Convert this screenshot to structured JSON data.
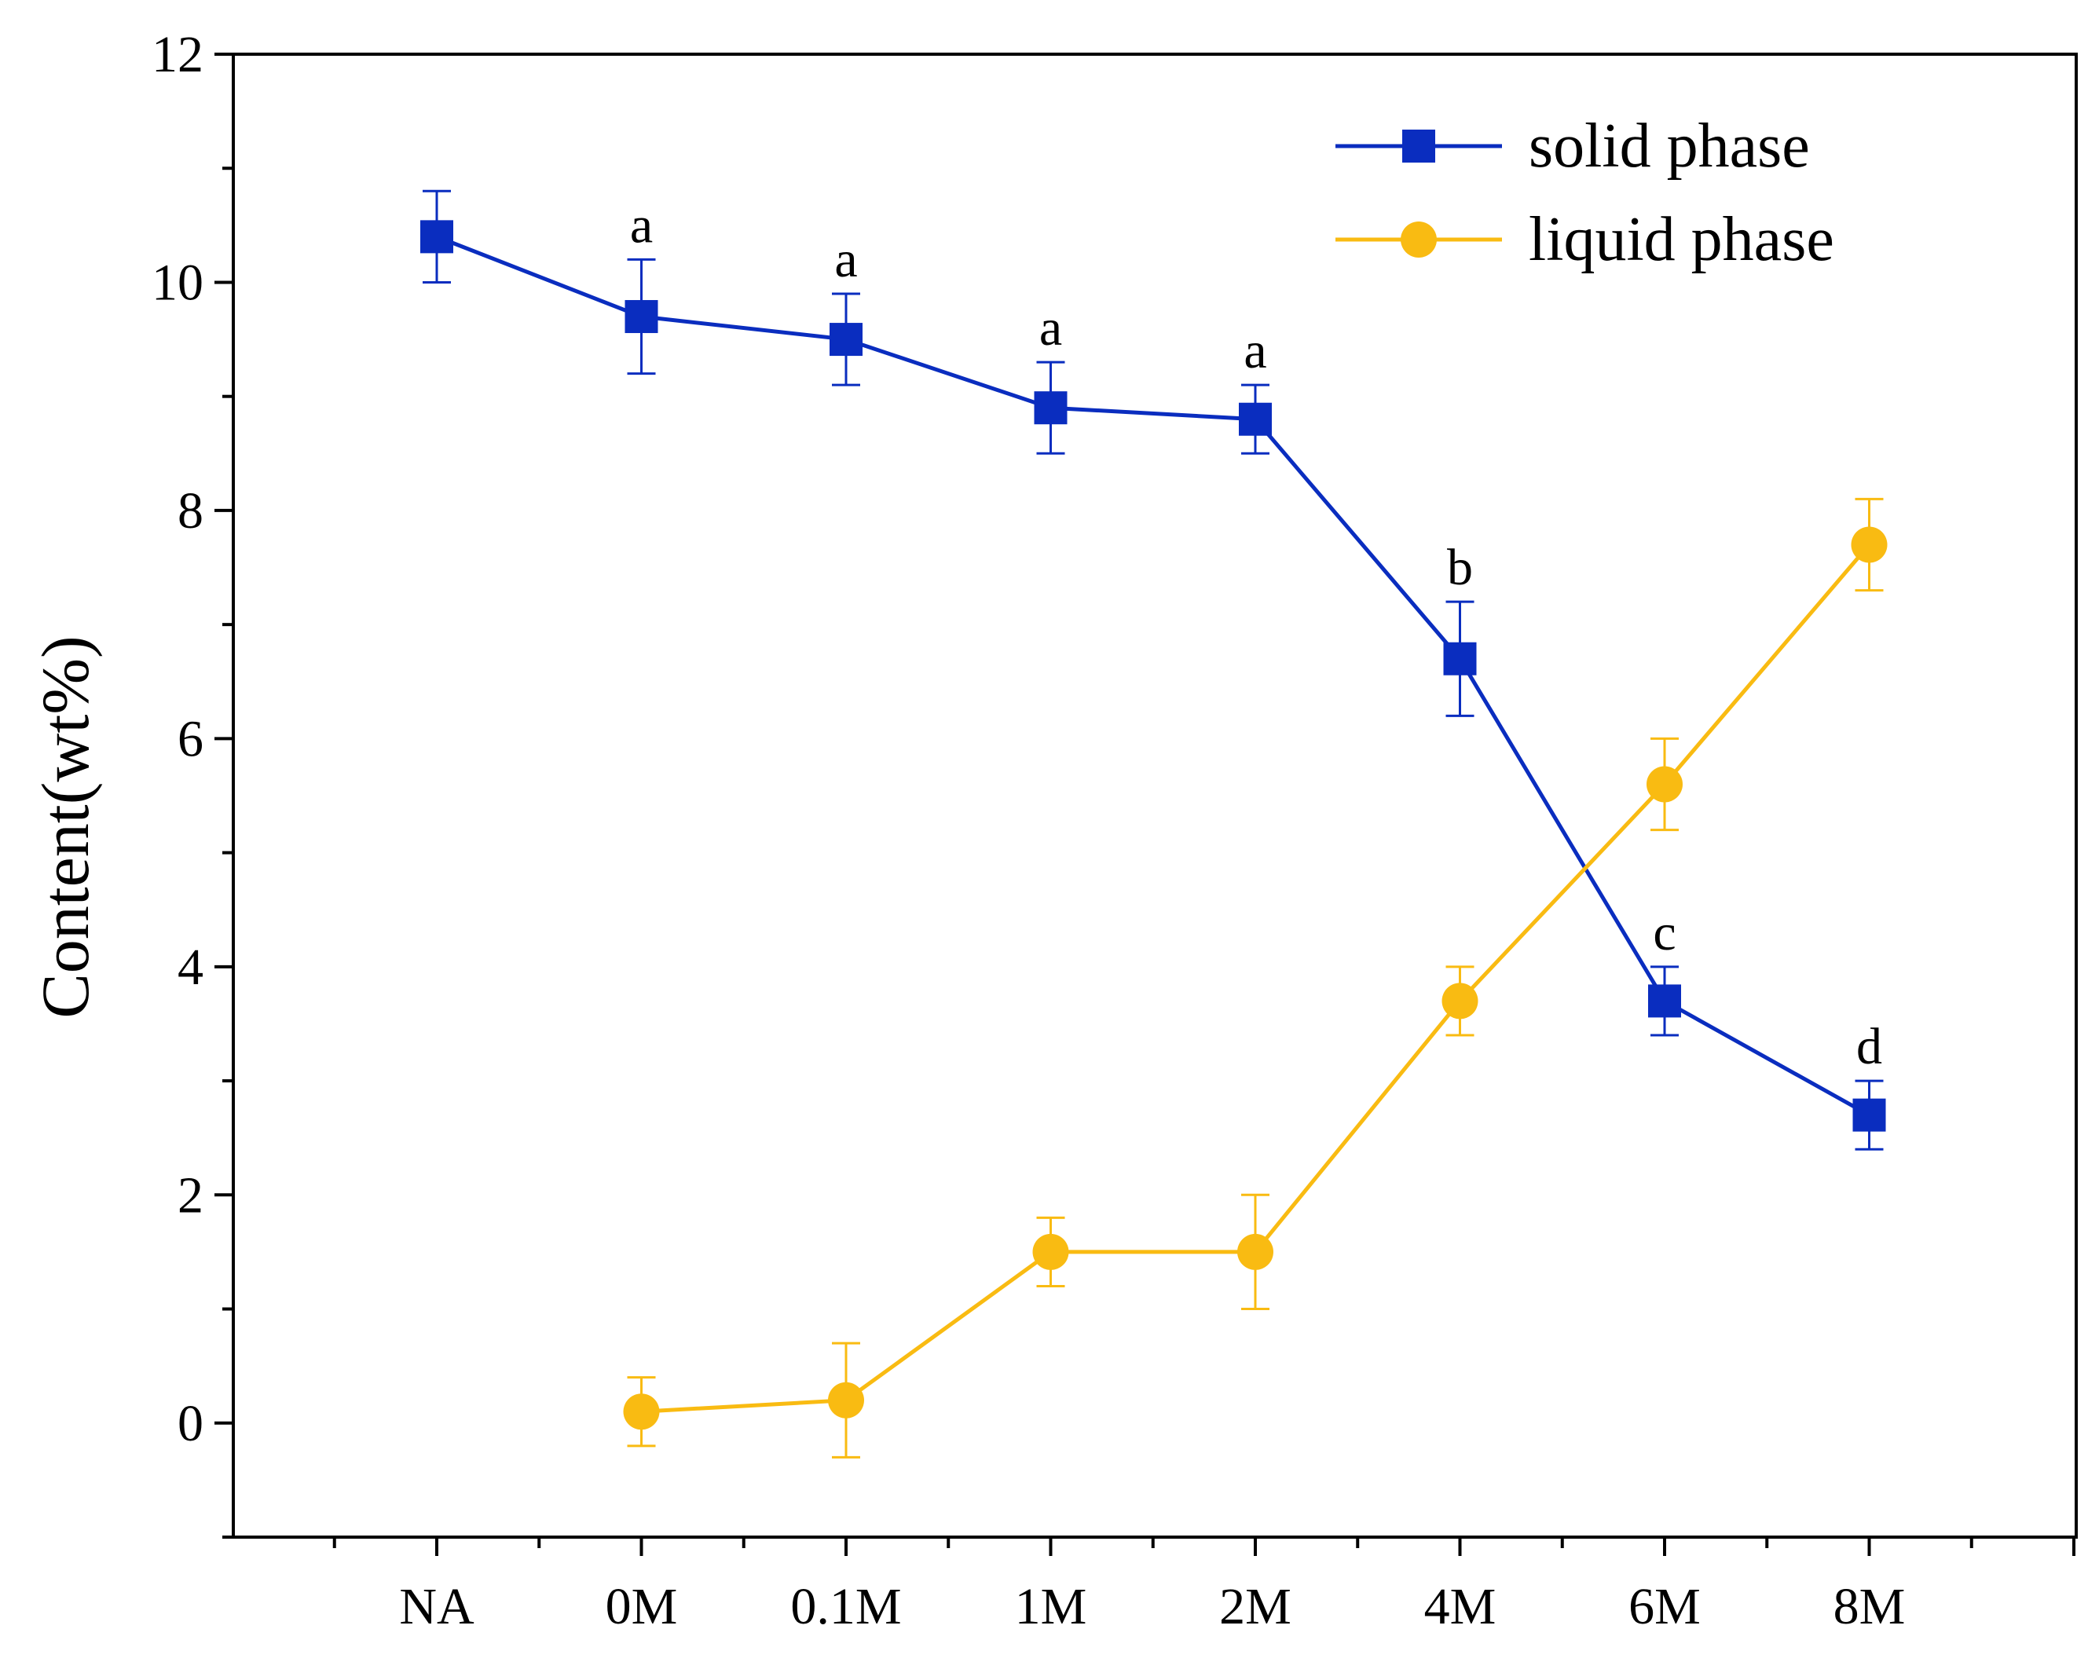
{
  "chart_data": {
    "type": "line",
    "title": "",
    "xlabel": "",
    "ylabel": "Content(wt%)",
    "categories": [
      "NA",
      "0M",
      "0.1M",
      "1M",
      "2M",
      "4M",
      "6M",
      "8M"
    ],
    "ylim": [
      -1,
      12
    ],
    "yticks": [
      0,
      2,
      4,
      6,
      8,
      10,
      12
    ],
    "grid": false,
    "legend_position": "top-right",
    "series": [
      {
        "name": "solid phase",
        "color": "#0a2dbf",
        "marker": "square",
        "values": [
          10.4,
          9.7,
          9.5,
          8.9,
          8.8,
          6.7,
          3.7,
          2.7
        ],
        "errors": [
          0.4,
          0.5,
          0.4,
          0.4,
          0.3,
          0.5,
          0.3,
          0.3
        ],
        "annotations": [
          "",
          "a",
          "a",
          "a",
          "a",
          "b",
          "c",
          "d"
        ]
      },
      {
        "name": "liquid phase",
        "color": "#f9bb12",
        "marker": "circle",
        "values": [
          null,
          0.1,
          0.2,
          1.5,
          1.5,
          3.7,
          5.6,
          7.7
        ],
        "errors": [
          null,
          0.3,
          0.5,
          0.3,
          0.5,
          0.3,
          0.4,
          0.4
        ]
      }
    ]
  }
}
